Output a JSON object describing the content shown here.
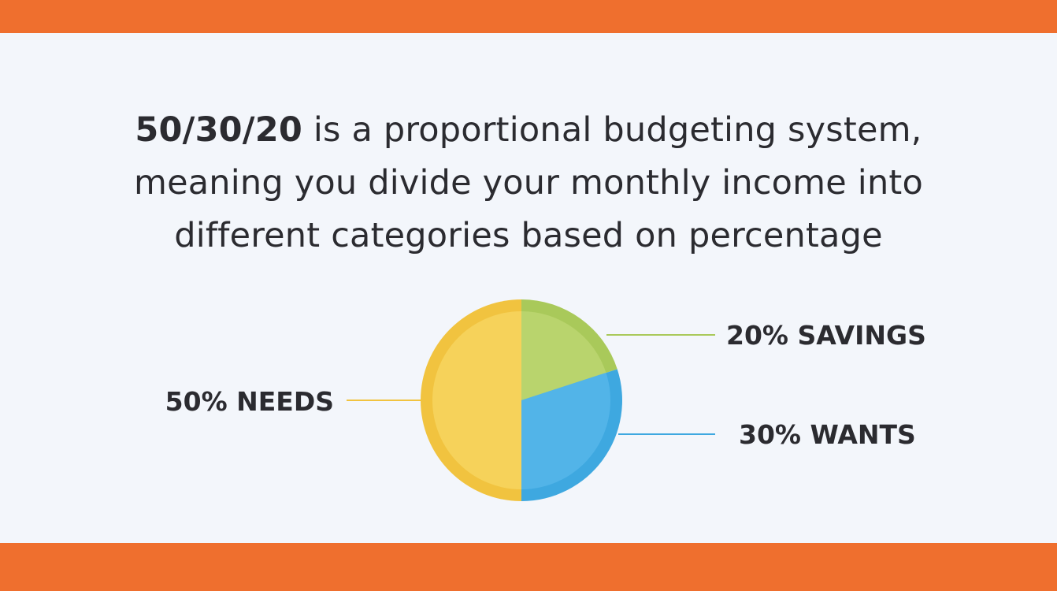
{
  "colors": {
    "band": "#ef6f2e",
    "background": "#f3f6fb",
    "needs": "#f1c33f",
    "needs_light": "#f6d25a",
    "wants": "#3ea8e0",
    "wants_light": "#52b4e8",
    "savings": "#a9c95a",
    "savings_light": "#b9d46d",
    "text": "#2b2b30"
  },
  "headline": {
    "emphasis": "50/30/20",
    "line1_rest": " is a proportional budgeting system,",
    "line2": "meaning you divide your monthly income into",
    "line3": "different categories based on percentage"
  },
  "chart_data": {
    "type": "pie",
    "slices": [
      {
        "label": "20% SAVINGS",
        "value": 20,
        "color": "#a9c95a",
        "light": "#b9d46d"
      },
      {
        "label": "30% WANTS",
        "value": 30,
        "color": "#3ea8e0",
        "light": "#52b4e8"
      },
      {
        "label": "50% NEEDS",
        "value": 50,
        "color": "#f1c33f",
        "light": "#f6d25a"
      }
    ]
  }
}
